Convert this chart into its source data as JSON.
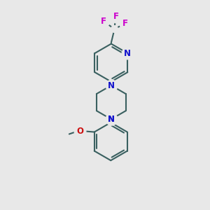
{
  "bg_color": "#e8e8e8",
  "bond_color": "#3a6060",
  "N_color": "#1010cc",
  "O_color": "#cc1010",
  "F_color": "#cc00cc",
  "line_width": 1.5,
  "fig_size": [
    3.0,
    3.0
  ],
  "dpi": 100,
  "xlim": [
    0,
    10
  ],
  "ylim": [
    0,
    10
  ]
}
